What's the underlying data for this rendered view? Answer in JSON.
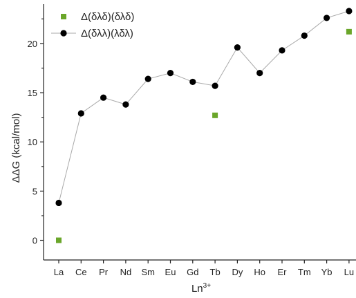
{
  "chart_data": {
    "type": "line",
    "categories": [
      "La",
      "Ce",
      "Pr",
      "Nd",
      "Sm",
      "Eu",
      "Gd",
      "Tb",
      "Dy",
      "Ho",
      "Er",
      "Tm",
      "Yb",
      "Lu"
    ],
    "xlabel": "Ln",
    "xlabel_sup": "3+",
    "ylabel": "ΔΔG (kcal/mol)",
    "ylim": [
      -2,
      24
    ],
    "yticks": [
      0,
      5,
      10,
      15,
      20
    ],
    "grid": false,
    "legend_position": "top-left",
    "series": [
      {
        "name": "Δ(δλδ)(δλδ)",
        "type": "scatter",
        "marker": "square",
        "color": "#6aa62a",
        "values": [
          0.0,
          null,
          null,
          null,
          null,
          null,
          null,
          12.7,
          null,
          null,
          null,
          null,
          null,
          21.2
        ]
      },
      {
        "name": "Δ(δλλ)(λδλ)",
        "type": "line",
        "marker": "circle",
        "color": "#000000",
        "line_color": "#a9a9a9",
        "values": [
          3.8,
          12.9,
          14.5,
          13.8,
          16.4,
          17.0,
          16.1,
          15.7,
          19.6,
          17.0,
          19.3,
          20.8,
          22.6,
          23.3
        ]
      }
    ]
  }
}
